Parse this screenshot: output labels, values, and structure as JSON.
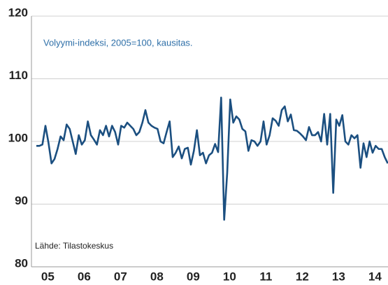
{
  "chart_data": {
    "type": "line",
    "annotations": [
      "Volyymi-indeksi, 2005=100, kausitas.",
      "Lähde: Tilastokeskus"
    ],
    "categories": [
      null,
      null,
      null,
      null,
      "05",
      null,
      null,
      null,
      null,
      null,
      null,
      null,
      null,
      null,
      null,
      null,
      "06",
      null,
      null,
      null,
      null,
      null,
      null,
      null,
      null,
      null,
      null,
      null,
      "07",
      null,
      null,
      null,
      null,
      null,
      null,
      null,
      null,
      null,
      null,
      null,
      "08",
      null,
      null,
      null,
      null,
      null,
      null,
      null,
      null,
      null,
      null,
      null,
      "09",
      null,
      null,
      null,
      null,
      null,
      null,
      null,
      null,
      null,
      null,
      null,
      "10",
      null,
      null,
      null,
      null,
      null,
      null,
      null,
      null,
      null,
      null,
      null,
      "11",
      null,
      null,
      null,
      null,
      null,
      null,
      null,
      null,
      null,
      null,
      null,
      "12",
      null,
      null,
      null,
      null,
      null,
      null,
      null,
      null,
      null,
      null,
      null,
      "13",
      null,
      null,
      null,
      null,
      null,
      null,
      null,
      null,
      null,
      null,
      null,
      "14",
      null,
      null,
      null,
      null
    ],
    "series": [
      {
        "color": "#1b4f80",
        "values": [
          99.3,
          99.3,
          99.5,
          102.5,
          99.8,
          96.5,
          97.2,
          98.8,
          100.8,
          100.2,
          102.7,
          102.0,
          100.0,
          98.0,
          101.0,
          99.5,
          100.2,
          103.2,
          101.0,
          100.3,
          99.5,
          101.8,
          101.0,
          102.5,
          100.8,
          102.5,
          101.5,
          99.5,
          102.5,
          102.2,
          103.0,
          102.5,
          102.0,
          101.0,
          101.5,
          103.0,
          105.0,
          103.0,
          102.5,
          102.2,
          102.0,
          100.0,
          99.7,
          101.5,
          103.2,
          97.5,
          98.2,
          99.2,
          97.3,
          98.8,
          99.0,
          96.3,
          98.5,
          101.8,
          97.8,
          98.2,
          96.5,
          97.8,
          98.2,
          99.6,
          98.3,
          107.0,
          87.5,
          95.0,
          106.7,
          103.0,
          104.0,
          103.5,
          102.0,
          101.6,
          98.5,
          100.2,
          100.0,
          99.3,
          100.0,
          103.2,
          99.5,
          101.0,
          103.7,
          103.3,
          102.5,
          105.0,
          105.6,
          103.2,
          104.3,
          101.8,
          101.7,
          101.3,
          100.8,
          100.2,
          102.3,
          101.0,
          101.0,
          101.5,
          100.0,
          104.4,
          99.5,
          104.4,
          91.8,
          103.5,
          102.5,
          104.2,
          100.0,
          99.5,
          101.0,
          100.5,
          101.0,
          95.8,
          99.7,
          97.5,
          100.0,
          98.2,
          99.3,
          98.8,
          98.8,
          97.5,
          96.5
        ]
      }
    ],
    "ylim": [
      80,
      120
    ],
    "yticks": [
      80,
      90,
      100,
      110,
      120
    ],
    "grid": true
  }
}
